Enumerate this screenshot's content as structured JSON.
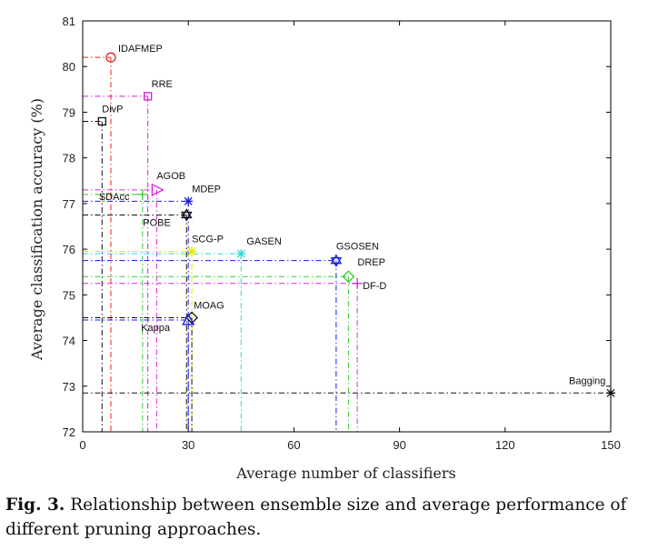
{
  "chart_data": {
    "type": "scatter",
    "title": "",
    "xlabel": "Average number of classifiers",
    "ylabel": "Average classification accuracy (%)",
    "xlim": [
      0,
      150
    ],
    "ylim": [
      72,
      81
    ],
    "xticks": [
      0,
      30,
      60,
      90,
      120,
      150
    ],
    "yticks": [
      72,
      73,
      74,
      75,
      76,
      77,
      78,
      79,
      80,
      81
    ],
    "grid": false,
    "series": [
      {
        "name": "IDAFMEP",
        "x": 8,
        "y": 80.2,
        "color": "#e8221c",
        "marker": "circle"
      },
      {
        "name": "RRE",
        "x": 18.5,
        "y": 79.35,
        "color": "#d91ad9",
        "marker": "square"
      },
      {
        "name": "DivP",
        "x": 5.5,
        "y": 78.8,
        "color": "#111111",
        "marker": "square"
      },
      {
        "name": "AGOB",
        "x": 21,
        "y": 77.3,
        "color": "#e020e0",
        "marker": "triangle-right"
      },
      {
        "name": "SDAcc",
        "x": 17,
        "y": 77.2,
        "color": "#33cc33",
        "marker": "plus"
      },
      {
        "name": "MDEP",
        "x": 30,
        "y": 77.05,
        "color": "#1a1ae6",
        "marker": "asterisk"
      },
      {
        "name": "POBE",
        "x": 29.5,
        "y": 76.75,
        "color": "#111111",
        "marker": "hexagram"
      },
      {
        "name": "SCG-P",
        "x": 31,
        "y": 75.95,
        "color": "#e6e600",
        "marker": "asterisk"
      },
      {
        "name": "GASEN",
        "x": 45,
        "y": 75.9,
        "color": "#22dddd",
        "marker": "asterisk"
      },
      {
        "name": "GSOSEN",
        "x": 72,
        "y": 75.75,
        "color": "#1a1ae6",
        "marker": "hexagram"
      },
      {
        "name": "DREP",
        "x": 75.5,
        "y": 75.4,
        "color": "#33cc33",
        "marker": "diamond"
      },
      {
        "name": "DF-D",
        "x": 78,
        "y": 75.25,
        "color": "#e020e0",
        "marker": "plus"
      },
      {
        "name": "MOAG",
        "x": 31,
        "y": 74.5,
        "color": "#111111",
        "marker": "diamond"
      },
      {
        "name": "Kappa",
        "x": 30,
        "y": 74.45,
        "color": "#1a1ae6",
        "marker": "triangle-up"
      },
      {
        "name": "Bagging",
        "x": 150,
        "y": 72.85,
        "color": "#111111",
        "marker": "asterisk"
      }
    ]
  },
  "caption": {
    "label": "Fig. 3.",
    "text": "Relationship between ensemble size and average performance of different pruning approaches."
  }
}
